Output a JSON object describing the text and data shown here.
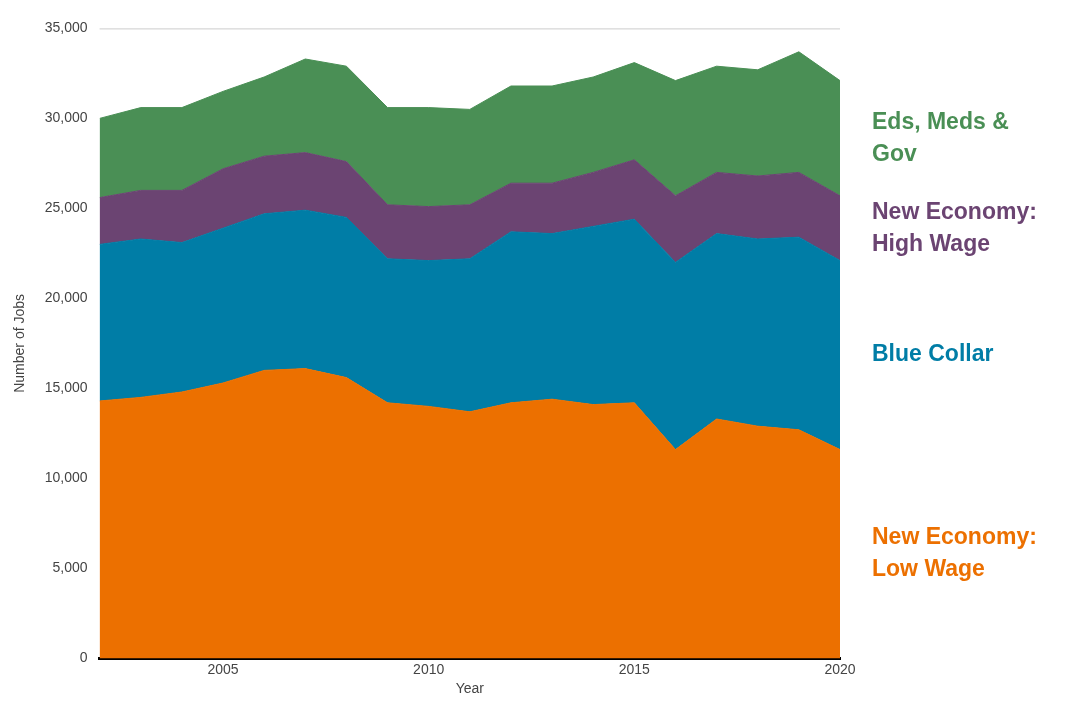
{
  "chart_data": {
    "type": "area",
    "stacked": true,
    "xlabel": "Year",
    "ylabel": "Number of Jobs",
    "x": [
      2002,
      2003,
      2004,
      2005,
      2006,
      2007,
      2008,
      2009,
      2010,
      2011,
      2012,
      2013,
      2014,
      2015,
      2016,
      2017,
      2018,
      2019,
      2020
    ],
    "xlim": [
      2002,
      2020
    ],
    "xticks": [
      2005,
      2010,
      2015,
      2020
    ],
    "ylim": [
      0,
      35000
    ],
    "yticks": [
      {
        "value": 0,
        "label": "0"
      },
      {
        "value": 5000,
        "label": "5,000"
      },
      {
        "value": 10000,
        "label": "10,000"
      },
      {
        "value": 15000,
        "label": "15,000"
      },
      {
        "value": 20000,
        "label": "20,000"
      },
      {
        "value": 25000,
        "label": "25,000"
      },
      {
        "value": 30000,
        "label": "30,000"
      },
      {
        "value": 35000,
        "label": "35,000"
      }
    ],
    "legend": false,
    "series": [
      {
        "name": "New Economy: Low Wage",
        "color": "#ec7000",
        "values": [
          14300,
          14500,
          14800,
          15300,
          16000,
          16100,
          15600,
          14200,
          14000,
          13700,
          14200,
          14400,
          14100,
          14200,
          11600,
          13300,
          12900,
          12700,
          11600
        ]
      },
      {
        "name": "Blue Collar",
        "color": "#007da6",
        "values": [
          8700,
          8800,
          8300,
          8600,
          8700,
          8800,
          8900,
          8000,
          8100,
          8500,
          9500,
          9200,
          9900,
          10200,
          10400,
          10300,
          10400,
          10700,
          10500
        ]
      },
      {
        "name": "New Economy: High Wage",
        "color": "#6b4472",
        "values": [
          2600,
          2700,
          2900,
          3300,
          3200,
          3200,
          3100,
          3000,
          3000,
          3000,
          2700,
          2800,
          3000,
          3300,
          3700,
          3400,
          3500,
          3600,
          3600
        ]
      },
      {
        "name": "Eds, Meds & Gov",
        "color": "#4a8f55",
        "values": [
          4400,
          4600,
          4600,
          4300,
          4400,
          5200,
          5300,
          5400,
          5500,
          5300,
          5400,
          5400,
          5300,
          5400,
          6400,
          5900,
          5900,
          6700,
          6400
        ]
      }
    ]
  }
}
